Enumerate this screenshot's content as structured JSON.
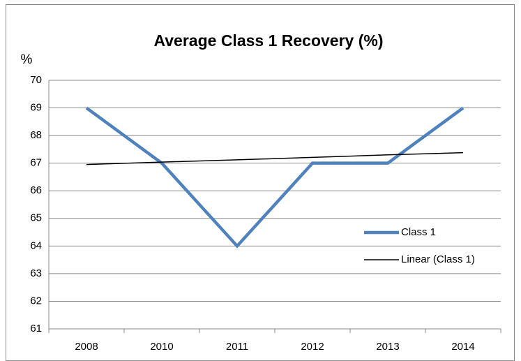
{
  "chart_data": {
    "type": "line",
    "title": "Average Class 1 Recovery (%)",
    "y_label": "%",
    "categories": [
      "2008",
      "2010",
      "2011",
      "2012",
      "2013",
      "2014"
    ],
    "series": [
      {
        "name": "Class 1",
        "color": "#4f81bd",
        "values": [
          69,
          67,
          64,
          67,
          67,
          69
        ]
      },
      {
        "name": "Linear (Class 1)",
        "color": "#000000",
        "values": [
          66.95,
          67.04,
          67.12,
          67.21,
          67.3,
          67.38
        ]
      }
    ],
    "ylim": [
      61,
      70
    ],
    "yticks": [
      61,
      62,
      63,
      64,
      65,
      66,
      67,
      68,
      69,
      70
    ],
    "grid": true,
    "legend": "right"
  }
}
